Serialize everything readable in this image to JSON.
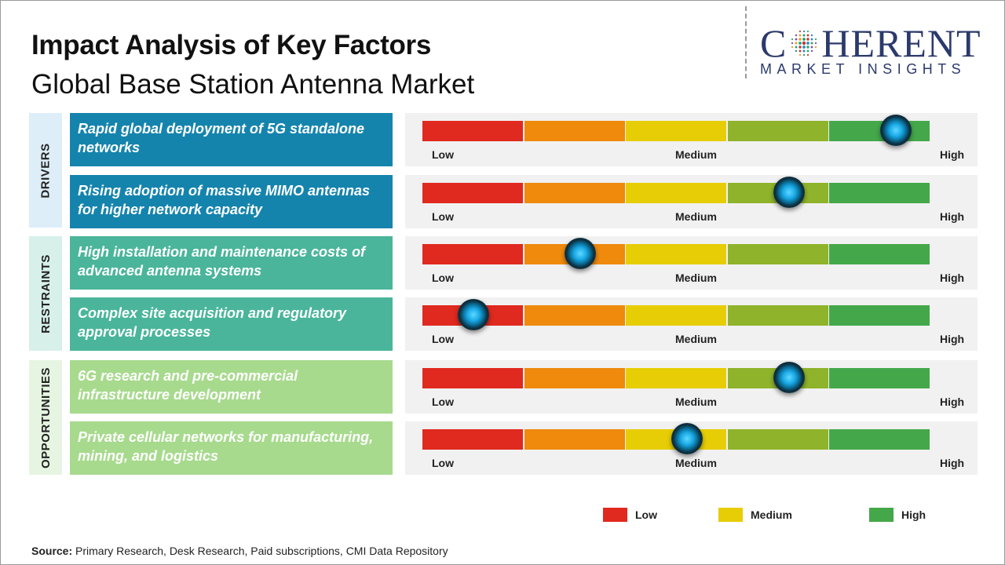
{
  "header": {
    "title": "Impact Analysis of Key Factors",
    "subtitle": "Global Base Station Antenna Market"
  },
  "logo": {
    "main_left": "C",
    "main_right": "HERENT",
    "sub": "MARKET INSIGHTS"
  },
  "categories": [
    {
      "label": "DRIVERS",
      "color": "#ddeef8"
    },
    {
      "label": "RESTRAINTS",
      "color": "#d7f0ea"
    },
    {
      "label": "OPPORTUNITIES",
      "color": "#e6f5e1"
    }
  ],
  "scale_labels": {
    "low": "Low",
    "medium": "Medium",
    "high": "High"
  },
  "segment_colors": [
    "#e0291f",
    "#ef8a0c",
    "#e6cd05",
    "#8fb32a",
    "#44a84a"
  ],
  "chart_data": {
    "type": "gauge",
    "scale": [
      "Low",
      "Medium",
      "High"
    ],
    "items": [
      {
        "category": "DRIVERS",
        "text": "Rapid global deployment of 5G standalone networks",
        "impact": 0.93,
        "color": "#1584ad"
      },
      {
        "category": "DRIVERS",
        "text": "Rising adoption of massive MIMO antennas for higher network capacity",
        "impact": 0.72,
        "color": "#1584ad"
      },
      {
        "category": "RESTRAINTS",
        "text": "High installation and maintenance costs of advanced antenna systems",
        "impact": 0.31,
        "color": "#4ab59b"
      },
      {
        "category": "RESTRAINTS",
        "text": "Complex site acquisition and regulatory approval processes",
        "impact": 0.1,
        "color": "#4ab59b"
      },
      {
        "category": "OPPORTUNITIES",
        "text": "6G research and pre-commercial infrastructure development",
        "impact": 0.72,
        "color": "#a7da8d"
      },
      {
        "category": "OPPORTUNITIES",
        "text": "Private cellular networks for manufacturing, mining, and logistics",
        "impact": 0.52,
        "color": "#a7da8d"
      }
    ]
  },
  "legend": [
    {
      "label": "Low",
      "color": "#e0291f"
    },
    {
      "label": "Medium",
      "color": "#e6cd05"
    },
    {
      "label": "High",
      "color": "#44a84a"
    }
  ],
  "source": {
    "label": "Source:",
    "text": "Primary Research, Desk Research, Paid subscriptions, CMI Data Repository"
  }
}
